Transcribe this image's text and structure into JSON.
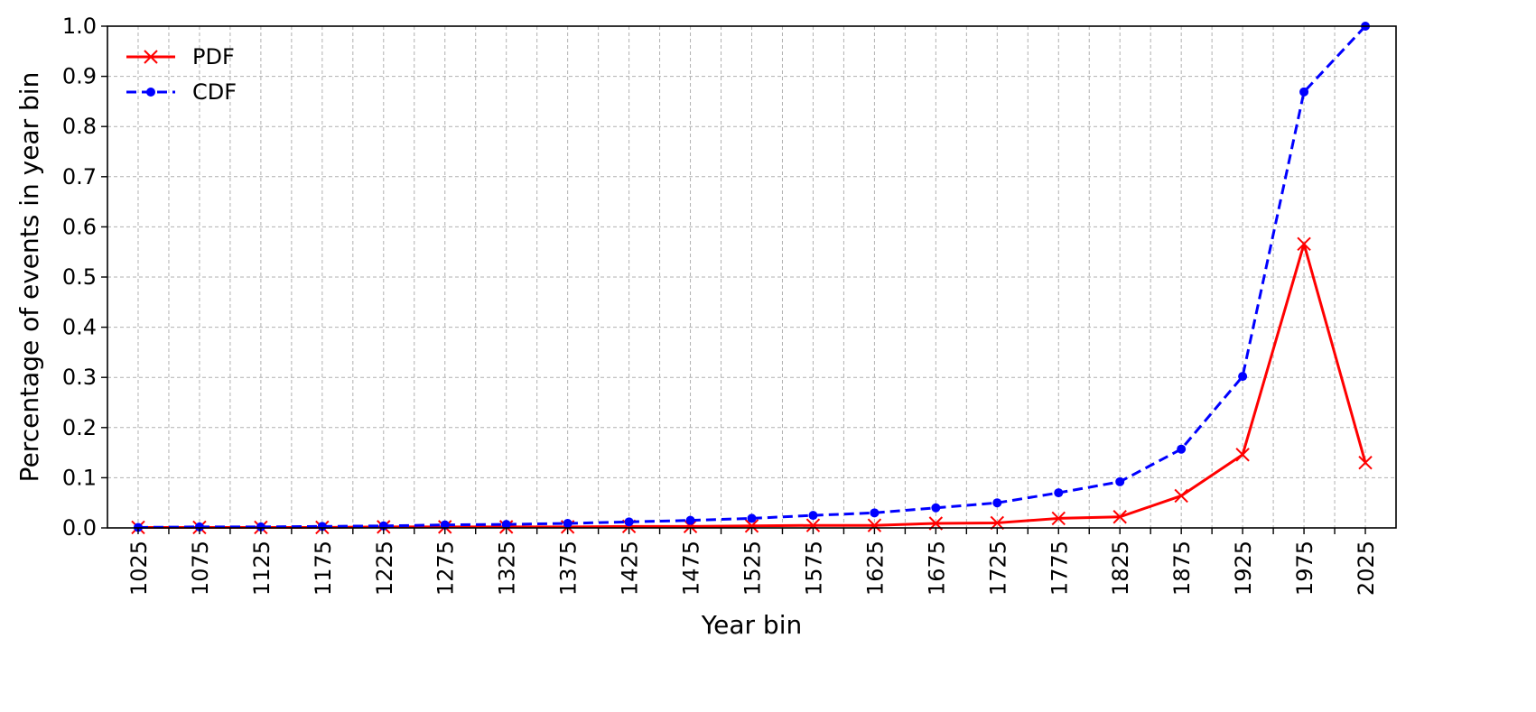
{
  "chart_data": {
    "type": "line",
    "xlabel": "Year bin",
    "ylabel": "Percentage of events in year bin",
    "xticks_major": [
      1025,
      1075,
      1125,
      1175,
      1225,
      1275,
      1325,
      1375,
      1425,
      1475,
      1525,
      1575,
      1625,
      1675,
      1725,
      1775,
      1825,
      1875,
      1925,
      1975,
      2025
    ],
    "xticks_minor_step": 25,
    "xlim": [
      1000,
      2050
    ],
    "ylim": [
      0,
      1.0
    ],
    "yticks": [
      0.0,
      0.1,
      0.2,
      0.3,
      0.4,
      0.5,
      0.6,
      0.7,
      0.8,
      0.9,
      1.0
    ],
    "yticks_labels": [
      "0.0",
      "0.1",
      "0.2",
      "0.3",
      "0.4",
      "0.5",
      "0.6",
      "0.7",
      "0.8",
      "0.9",
      "1.0"
    ],
    "grid": true,
    "legend_position": "top-left",
    "x": [
      1025,
      1075,
      1125,
      1175,
      1225,
      1275,
      1325,
      1375,
      1425,
      1475,
      1525,
      1575,
      1625,
      1675,
      1725,
      1775,
      1825,
      1875,
      1925,
      1975,
      2025
    ],
    "series": [
      {
        "name": "PDF",
        "color": "#ff0000",
        "line_style": "solid",
        "marker": "x",
        "values": [
          0.001,
          0.001,
          0.001,
          0.001,
          0.002,
          0.002,
          0.002,
          0.002,
          0.003,
          0.003,
          0.004,
          0.005,
          0.005,
          0.009,
          0.01,
          0.019,
          0.022,
          0.064,
          0.146,
          0.566,
          0.13
        ]
      },
      {
        "name": "CDF",
        "color": "#0000ff",
        "line_style": "dashed",
        "marker": "dot",
        "values": [
          0.001,
          0.002,
          0.002,
          0.003,
          0.004,
          0.006,
          0.007,
          0.009,
          0.012,
          0.015,
          0.019,
          0.025,
          0.03,
          0.04,
          0.05,
          0.07,
          0.092,
          0.157,
          0.302,
          0.869,
          1.0
        ]
      }
    ]
  }
}
